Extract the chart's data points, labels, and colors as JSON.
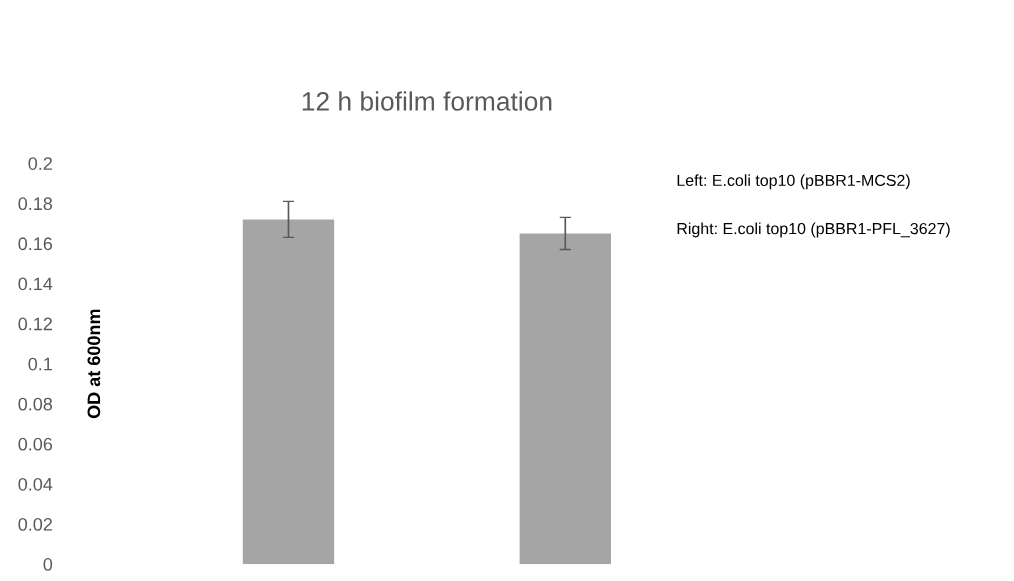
{
  "chart_data": {
    "type": "bar",
    "title": "12 h biofilm formation",
    "ylabel": "OD at 600nm",
    "categories": [
      null,
      null
    ],
    "values": [
      0.172,
      0.165
    ],
    "errors": [
      0.009,
      0.008
    ],
    "color": "#a5a5a5",
    "ylim": [
      0,
      0.2
    ],
    "yticks": [
      0,
      0.02,
      0.04,
      0.06,
      0.08,
      0.1,
      0.12,
      0.14,
      0.16,
      0.18,
      0.2
    ],
    "grid": false,
    "legend": false,
    "annotations": [
      "Left: E.coli top10 (pBBR1-MCS2)",
      "Right: E.coli top10 (pBBR1-PFL_3627)"
    ]
  }
}
